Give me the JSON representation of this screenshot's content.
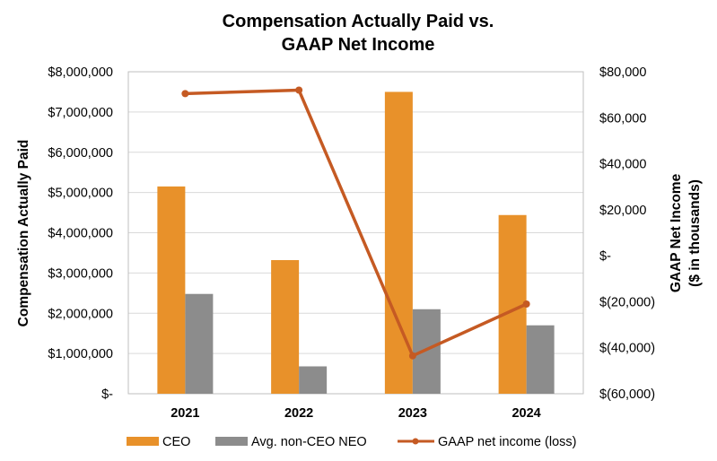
{
  "chart_data": {
    "type": "bar",
    "title_lines": [
      "Compensation Actually Paid vs.",
      "GAAP Net Income"
    ],
    "categories": [
      "2021",
      "2022",
      "2023",
      "2024"
    ],
    "series": [
      {
        "name": "CEO",
        "type": "bar",
        "axis": "left",
        "color": "#E8912A",
        "values": [
          5150000,
          3320000,
          7500000,
          4440000
        ]
      },
      {
        "name": "Avg. non-CEO NEO",
        "type": "bar",
        "axis": "left",
        "color": "#8C8C8C",
        "values": [
          2480000,
          680000,
          2100000,
          1700000
        ]
      },
      {
        "name": "GAAP net income (loss)",
        "type": "line",
        "axis": "right",
        "color": "#C55A23",
        "values": [
          70500,
          72000,
          -43500,
          -21000
        ]
      }
    ],
    "left_axis": {
      "label": "Compensation Actually Paid",
      "ylim": [
        0,
        8000000
      ],
      "ticks": [
        0,
        1000000,
        2000000,
        3000000,
        4000000,
        5000000,
        6000000,
        7000000,
        8000000
      ],
      "tick_labels": [
        "$-",
        "$1,000,000",
        "$2,000,000",
        "$3,000,000",
        "$4,000,000",
        "$5,000,000",
        "$6,000,000",
        "$7,000,000",
        "$8,000,000"
      ]
    },
    "right_axis": {
      "label_lines": [
        "GAAP Net Income",
        "($ in thousands)"
      ],
      "ylim": [
        -60000,
        80000
      ],
      "ticks": [
        -60000,
        -40000,
        -20000,
        0,
        20000,
        40000,
        60000,
        80000
      ],
      "tick_labels": [
        "$(60,000)",
        "$(40,000)",
        "$(20,000)",
        "$-",
        "$20,000",
        "$40,000",
        "$60,000",
        "$80,000"
      ]
    },
    "grid": true,
    "legend_position": "bottom"
  }
}
